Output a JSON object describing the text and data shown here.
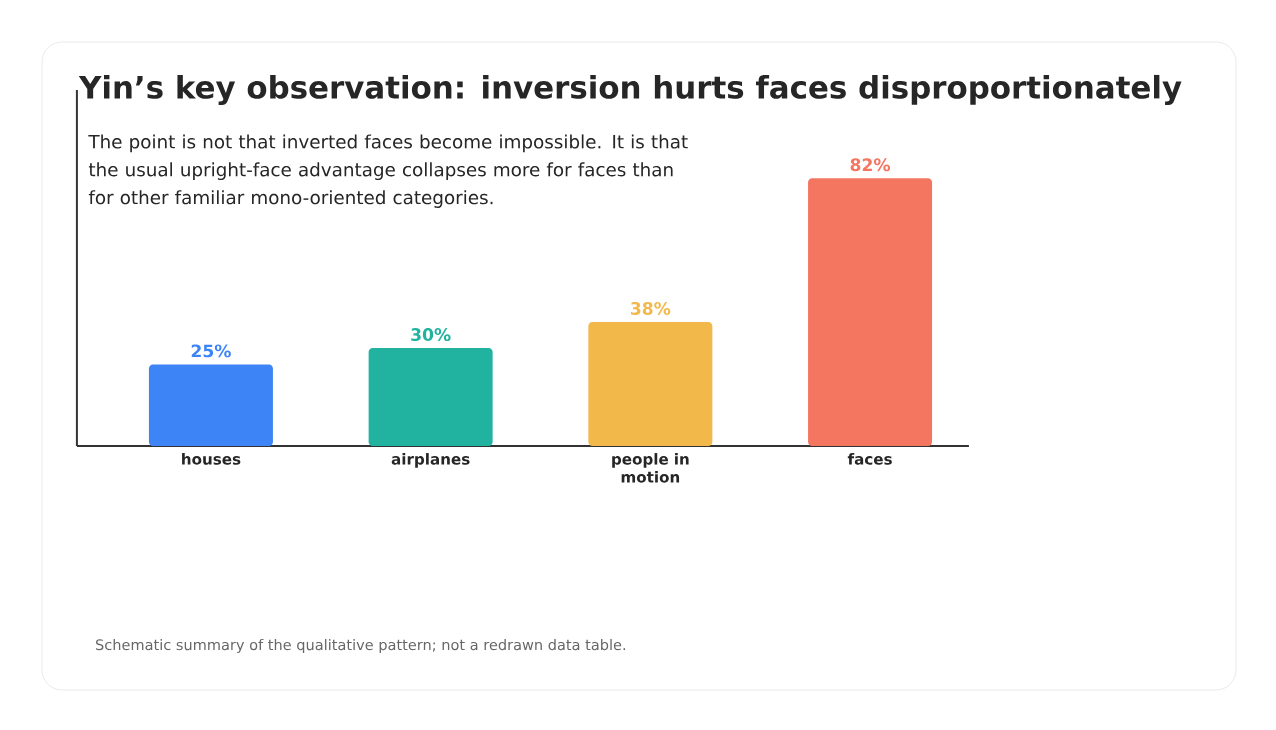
{
  "chart_data": {
    "type": "bar",
    "title": "Yin’s key observation: inversion hurts faces disproportionately",
    "subtitle": "The point is not that inverted faces become impossible. It is that the usual upright-face advantage collapses more for faces than for other familiar mono-oriented categories.",
    "categories": [
      "houses",
      "airplanes",
      "people in motion",
      "faces"
    ],
    "values": [
      25,
      30,
      38,
      82
    ],
    "value_labels": [
      "25%",
      "30%",
      "38%",
      "82%"
    ],
    "colors": [
      "#3d85f7",
      "#22b3a0",
      "#f2b84a",
      "#f47560"
    ],
    "annotations": [
      "Schematic summary of the qualitative pattern; not a redrawn data table."
    ]
  }
}
